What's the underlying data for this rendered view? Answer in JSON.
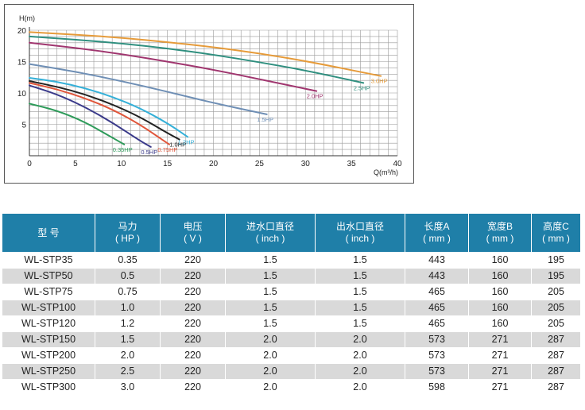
{
  "chart_data": {
    "type": "line",
    "ylabel": "H(m)",
    "xlabel": "Q(m³/h)",
    "xlim": [
      0,
      40
    ],
    "ylim": [
      0,
      20
    ],
    "x_ticks": [
      0,
      5,
      10,
      15,
      20,
      25,
      30,
      35,
      40
    ],
    "y_ticks": [
      5,
      10,
      15,
      20
    ],
    "grid": true,
    "series": [
      {
        "name": "0.35HP",
        "color": "#2e9b5a",
        "x": [
          0,
          3,
          6,
          9,
          10.3
        ],
        "y": [
          8.3,
          7.2,
          5.4,
          2.9,
          1.8
        ]
      },
      {
        "name": "0.5HP",
        "color": "#3a3a8a",
        "x": [
          0,
          3,
          6,
          9,
          12,
          13.2
        ],
        "y": [
          11.2,
          9.8,
          7.8,
          5.3,
          2.4,
          1.4
        ]
      },
      {
        "name": "0.75HP",
        "color": "#e0553a",
        "x": [
          0,
          3,
          6,
          9,
          12,
          15.2
        ],
        "y": [
          11.6,
          10.6,
          9.2,
          7.4,
          5.0,
          1.8
        ]
      },
      {
        "name": "1.0HP",
        "color": "#222222",
        "x": [
          0,
          3,
          6,
          9,
          12,
          15,
          16.3
        ],
        "y": [
          11.9,
          11.0,
          9.8,
          8.2,
          6.2,
          3.6,
          2.6
        ]
      },
      {
        "name": "1.2HP",
        "color": "#35b0d8",
        "x": [
          0,
          3,
          6,
          9,
          12,
          15,
          17.2
        ],
        "y": [
          12.4,
          11.8,
          10.8,
          9.4,
          7.6,
          5.2,
          3.0
        ]
      },
      {
        "name": "1.5HP",
        "color": "#6f8fb5",
        "x": [
          0,
          5,
          10,
          15,
          20,
          25.8
        ],
        "y": [
          14.6,
          13.4,
          11.9,
          10.2,
          8.4,
          6.6
        ]
      },
      {
        "name": "2.0HP",
        "color": "#a0366f",
        "x": [
          0,
          5,
          10,
          15,
          20,
          25,
          31.2
        ],
        "y": [
          18.0,
          17.2,
          16.2,
          15.0,
          13.7,
          12.2,
          10.3
        ]
      },
      {
        "name": "2.5HP",
        "color": "#2f8f7f",
        "x": [
          0,
          5,
          10,
          15,
          20,
          25,
          30,
          36.3
        ],
        "y": [
          19.0,
          18.5,
          17.9,
          17.1,
          16.1,
          14.9,
          13.6,
          11.6
        ]
      },
      {
        "name": "3.0HP",
        "color": "#e69b3a",
        "x": [
          0,
          5,
          10,
          15,
          20,
          25,
          30,
          38.2
        ],
        "y": [
          19.7,
          19.3,
          18.8,
          18.1,
          17.3,
          16.3,
          15.1,
          12.7
        ]
      }
    ]
  },
  "table": {
    "headers": [
      {
        "line1": "型  号",
        "line2": ""
      },
      {
        "line1": "马力",
        "line2": "( HP )"
      },
      {
        "line1": "电压",
        "line2": "( V )"
      },
      {
        "line1": "进水口直径",
        "line2": "( inch )"
      },
      {
        "line1": "出水口直径",
        "line2": "( inch )"
      },
      {
        "line1": "长度A",
        "line2": "( mm )"
      },
      {
        "line1": "宽度B",
        "line2": "( mm )"
      },
      {
        "line1": "高度C",
        "line2": "( mm )"
      }
    ],
    "rows": [
      [
        "WL-STP35",
        "0.35",
        "220",
        "1.5",
        "1.5",
        "443",
        "160",
        "195"
      ],
      [
        "WL-STP50",
        "0.5",
        "220",
        "1.5",
        "1.5",
        "443",
        "160",
        "195"
      ],
      [
        "WL-STP75",
        "0.75",
        "220",
        "1.5",
        "1.5",
        "465",
        "160",
        "205"
      ],
      [
        "WL-STP100",
        "1.0",
        "220",
        "1.5",
        "1.5",
        "465",
        "160",
        "205"
      ],
      [
        "WL-STP120",
        "1.2",
        "220",
        "1.5",
        "1.5",
        "465",
        "160",
        "205"
      ],
      [
        "WL-STP150",
        "1.5",
        "220",
        "2.0",
        "2.0",
        "573",
        "271",
        "287"
      ],
      [
        "WL-STP200",
        "2.0",
        "220",
        "2.0",
        "2.0",
        "573",
        "271",
        "287"
      ],
      [
        "WL-STP250",
        "2.5",
        "220",
        "2.0",
        "2.0",
        "573",
        "271",
        "287"
      ],
      [
        "WL-STP300",
        "3.0",
        "220",
        "2.0",
        "2.0",
        "598",
        "271",
        "287"
      ]
    ]
  }
}
